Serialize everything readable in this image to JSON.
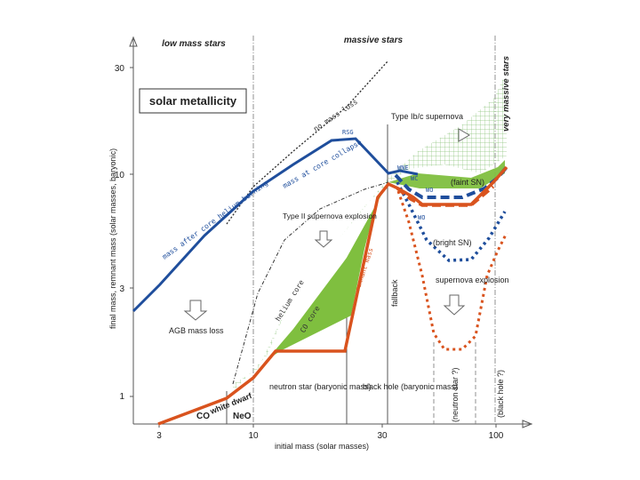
{
  "header": {
    "low_mass_stars": "low mass stars",
    "massive_stars": "massive stars",
    "very_massive_stars": "very massive stars"
  },
  "box_title": "solar metallicity",
  "axes": {
    "xlabel": "initial mass (solar masses)",
    "ylabel": "final mass, remnant mass (solar masses, baryonic)",
    "x_ticks": [
      "3",
      "10",
      "30",
      "100"
    ],
    "y_ticks": [
      "1",
      "3",
      "10",
      "30"
    ]
  },
  "curves": {
    "mass_after_helium": "mass after core helium burning",
    "mass_at_collapse": "mass at core collapse",
    "no_mass_loss": "no mass loss",
    "helium_core": "helium core",
    "co_core": "CO core",
    "remnant_mass": "remnant mass"
  },
  "annotations": {
    "type_ibc": "Type Ib/c supernova",
    "type_ii": "Type II supernova explosion",
    "agb": "AGB mass loss",
    "fallback": "fallback",
    "faint_sn": "(faint SN)",
    "bright_sn": "(bright SN)",
    "sn_explosion": "supernova explosion",
    "rsg": "RSG",
    "wne": "WNE",
    "wc": "WC",
    "wo1": "WO",
    "wo2": "WO",
    "white_dwarf": "white dwarf",
    "co": "CO",
    "neo": "NeO",
    "neutron_star": "neutron star (baryonic mass)",
    "black_hole": "black hole (baryonic mass)",
    "neutron_star_q": "(neutron star ?)",
    "black_hole_q": "(black hole ?)"
  },
  "colors": {
    "blue": "#1f4e9c",
    "red": "#d9531e",
    "green": "#7fbf3f",
    "hatch": "#9ccf86"
  }
}
